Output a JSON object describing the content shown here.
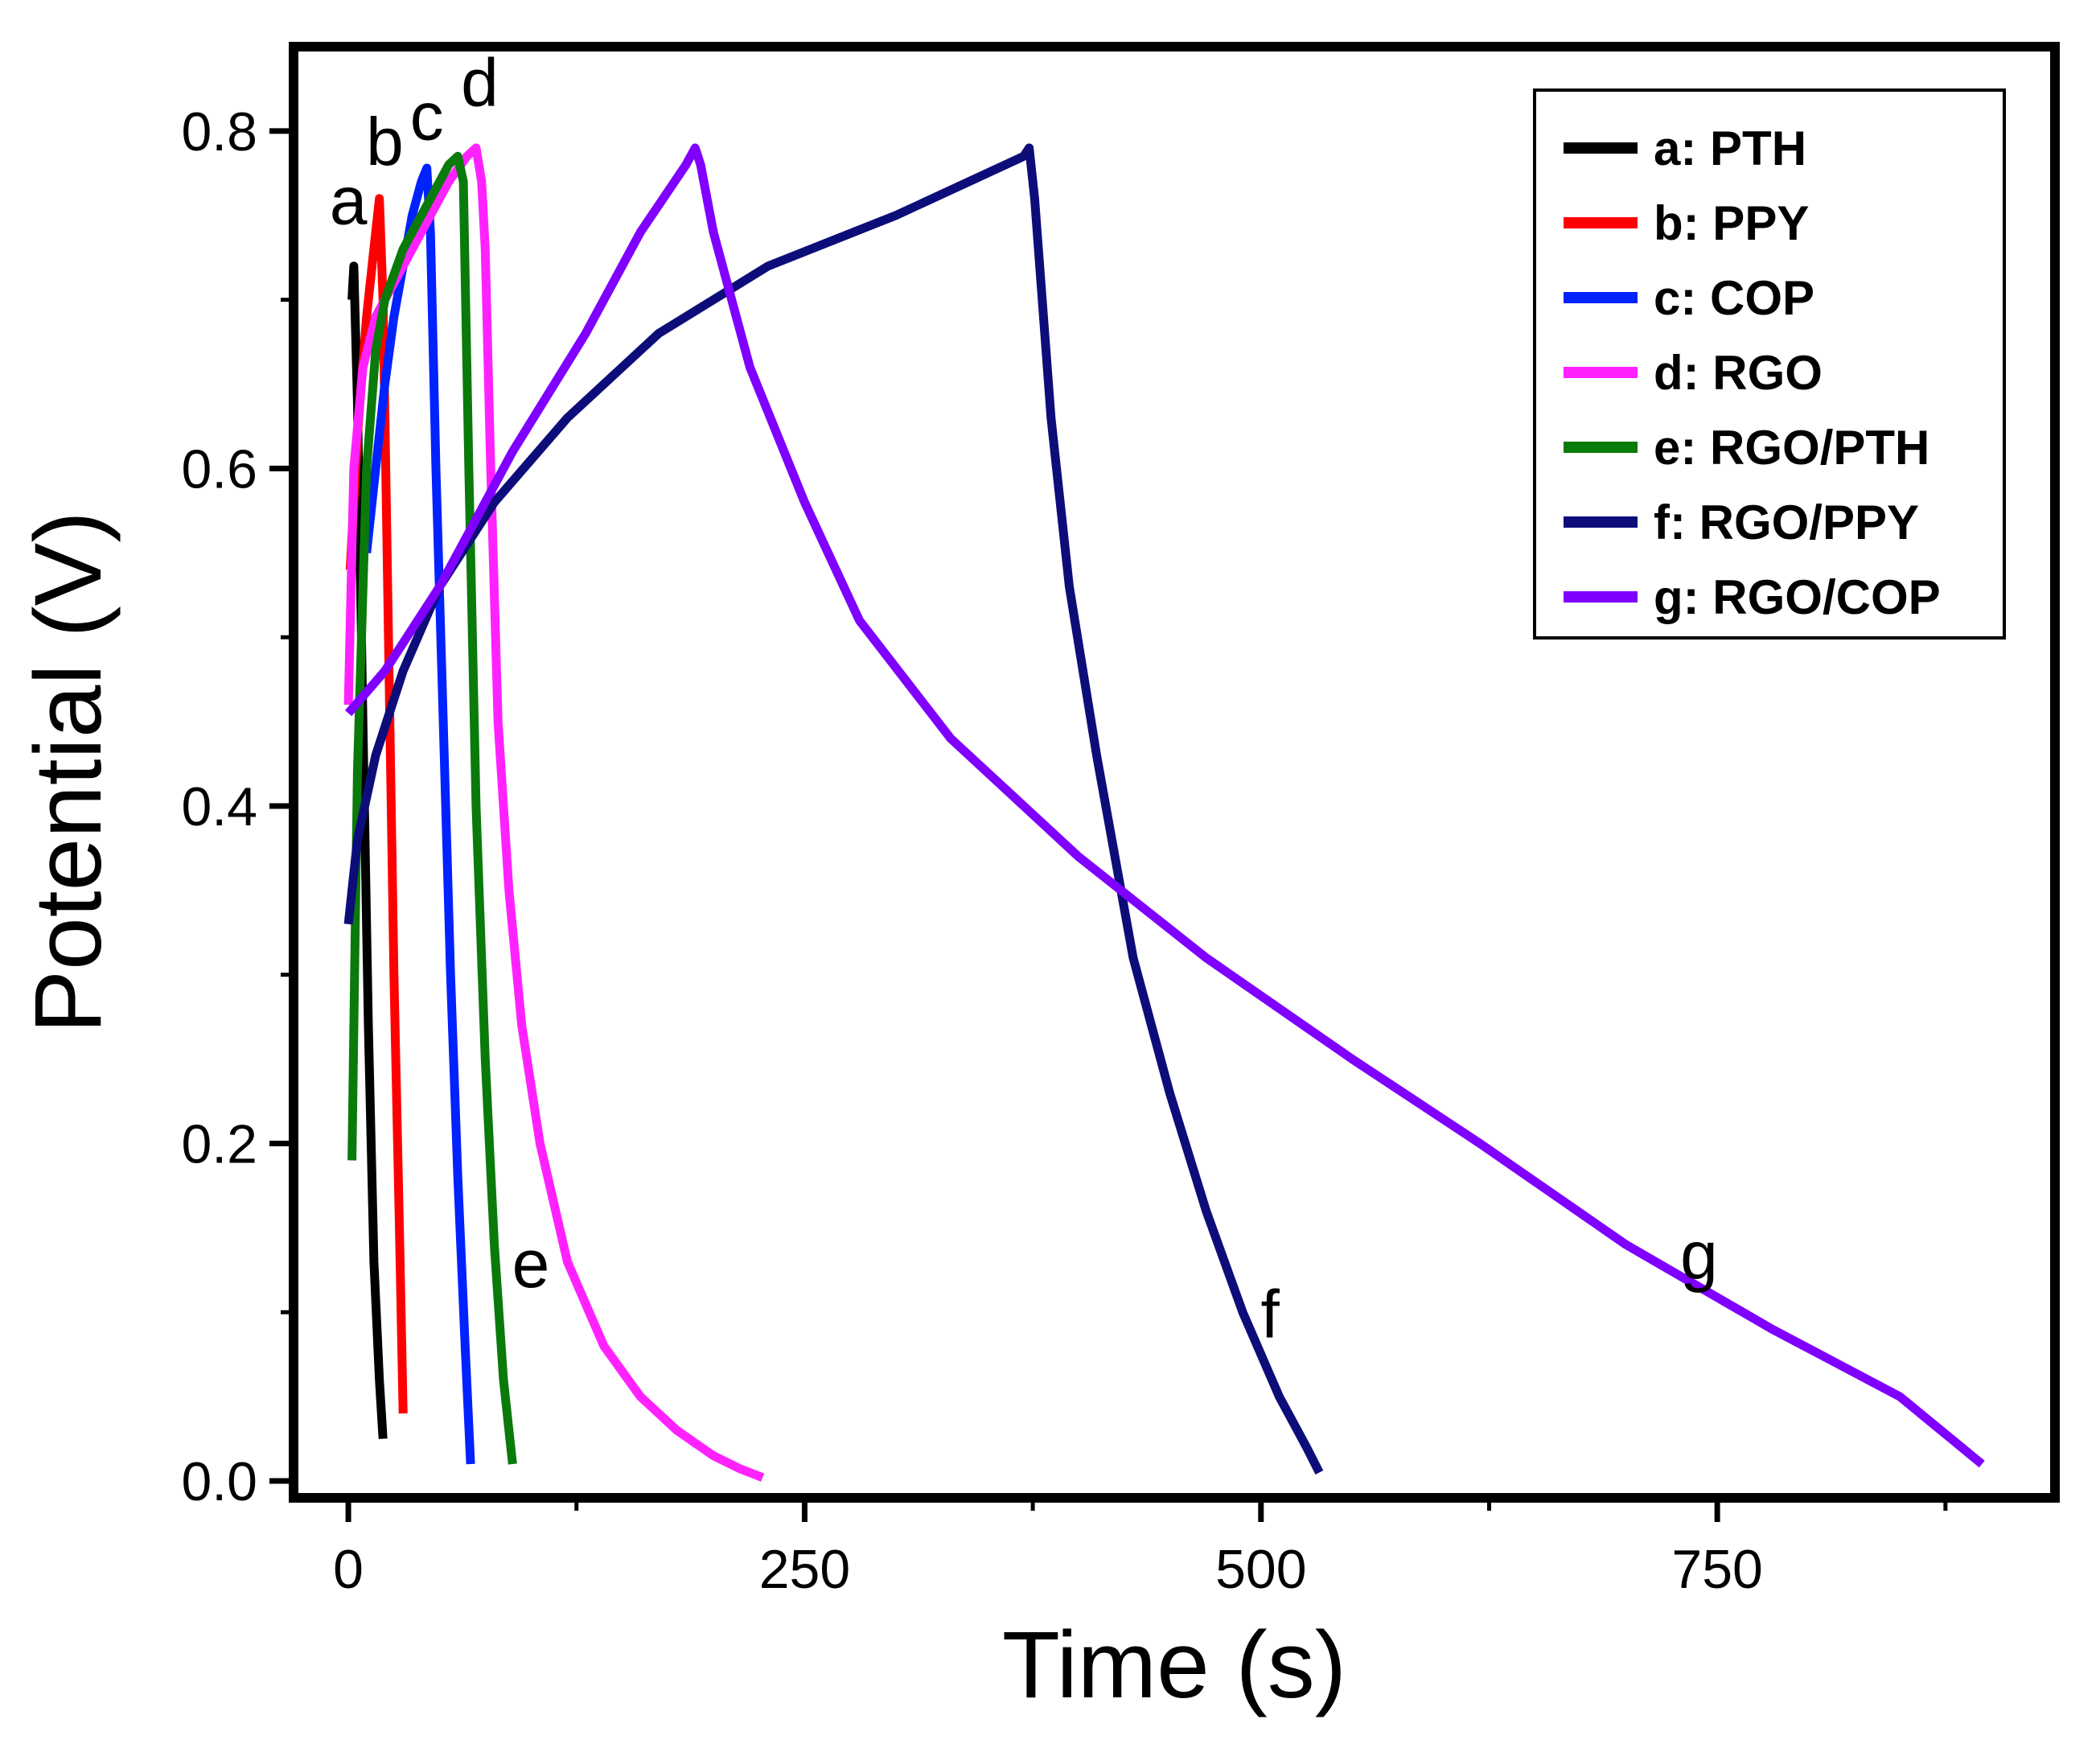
{
  "chart_data": {
    "type": "line",
    "title": "",
    "xlabel": "Time (s)",
    "ylabel": "Potential  (V)",
    "xlim": [
      -30,
      935
    ],
    "ylim": [
      -0.01,
      0.85
    ],
    "xticks": [
      0,
      250,
      500,
      750
    ],
    "yticks": [
      0.0,
      0.2,
      0.4,
      0.6,
      0.8
    ],
    "xtick_labels": [
      "0",
      "250",
      "500",
      "750"
    ],
    "ytick_labels": [
      "0.0",
      "0.2",
      "0.4",
      "0.6",
      "0.8"
    ],
    "grid": false,
    "legend_position": "top-right",
    "series": [
      {
        "id": "a",
        "name": "a: PTH",
        "color": "#000000",
        "points": [
          [
            2,
            0.7
          ],
          [
            3,
            0.72
          ],
          [
            5,
            0.64
          ],
          [
            8,
            0.45
          ],
          [
            11,
            0.27
          ],
          [
            14,
            0.13
          ],
          [
            17,
            0.06
          ],
          [
            19,
            0.025
          ]
        ],
        "curve_label": "a",
        "label_at": [
          0,
          0.745
        ]
      },
      {
        "id": "b",
        "name": "b: PPY",
        "color": "#ff0000",
        "points": [
          [
            1,
            0.54
          ],
          [
            5,
            0.62
          ],
          [
            10,
            0.69
          ],
          [
            15,
            0.74
          ],
          [
            17,
            0.76
          ],
          [
            19,
            0.7
          ],
          [
            22,
            0.5
          ],
          [
            25,
            0.3
          ],
          [
            28,
            0.15
          ],
          [
            30,
            0.04
          ]
        ],
        "curve_label": "b",
        "label_at": [
          20,
          0.78
        ]
      },
      {
        "id": "c",
        "name": "c: COP",
        "color": "#0022ff",
        "points": [
          [
            10,
            0.55
          ],
          [
            15,
            0.6
          ],
          [
            20,
            0.65
          ],
          [
            25,
            0.69
          ],
          [
            30,
            0.72
          ],
          [
            35,
            0.75
          ],
          [
            40,
            0.77
          ],
          [
            43,
            0.778
          ],
          [
            45,
            0.74
          ],
          [
            48,
            0.6
          ],
          [
            52,
            0.45
          ],
          [
            56,
            0.3
          ],
          [
            60,
            0.18
          ],
          [
            64,
            0.08
          ],
          [
            67,
            0.01
          ]
        ],
        "curve_label": "c",
        "label_at": [
          43,
          0.795
        ]
      },
      {
        "id": "d",
        "name": "d: RGO",
        "color": "#ff22ff",
        "points": [
          [
            0,
            0.46
          ],
          [
            3,
            0.6
          ],
          [
            8,
            0.66
          ],
          [
            15,
            0.69
          ],
          [
            25,
            0.71
          ],
          [
            35,
            0.73
          ],
          [
            45,
            0.75
          ],
          [
            55,
            0.77
          ],
          [
            65,
            0.785
          ],
          [
            70,
            0.79
          ],
          [
            73,
            0.77
          ],
          [
            75,
            0.73
          ],
          [
            78,
            0.6
          ],
          [
            82,
            0.45
          ],
          [
            88,
            0.35
          ],
          [
            95,
            0.27
          ],
          [
            105,
            0.2
          ],
          [
            120,
            0.13
          ],
          [
            140,
            0.08
          ],
          [
            160,
            0.05
          ],
          [
            180,
            0.03
          ],
          [
            200,
            0.015
          ],
          [
            215,
            0.007
          ],
          [
            227,
            0.002
          ]
        ],
        "curve_label": "d",
        "label_at": [
          72,
          0.815
        ]
      },
      {
        "id": "e",
        "name": "e: RGO/PTH",
        "color": "#0a7a0a",
        "points": [
          [
            2,
            0.19
          ],
          [
            5,
            0.42
          ],
          [
            10,
            0.6
          ],
          [
            15,
            0.67
          ],
          [
            20,
            0.7
          ],
          [
            30,
            0.73
          ],
          [
            40,
            0.75
          ],
          [
            50,
            0.77
          ],
          [
            55,
            0.78
          ],
          [
            60,
            0.785
          ],
          [
            63,
            0.77
          ],
          [
            66,
            0.6
          ],
          [
            70,
            0.4
          ],
          [
            75,
            0.25
          ],
          [
            80,
            0.14
          ],
          [
            85,
            0.06
          ],
          [
            90,
            0.01
          ]
        ],
        "curve_label": "e",
        "label_at": [
          100,
          0.115
        ]
      },
      {
        "id": "f",
        "name": "f: RGO/PPY",
        "color": "#0d0d7a",
        "points": [
          [
            0,
            0.33
          ],
          [
            5,
            0.38
          ],
          [
            15,
            0.43
          ],
          [
            30,
            0.48
          ],
          [
            50,
            0.53
          ],
          [
            80,
            0.58
          ],
          [
            120,
            0.63
          ],
          [
            170,
            0.68
          ],
          [
            230,
            0.72
          ],
          [
            300,
            0.75
          ],
          [
            370,
            0.785
          ],
          [
            373,
            0.79
          ],
          [
            376,
            0.76
          ],
          [
            385,
            0.63
          ],
          [
            395,
            0.53
          ],
          [
            410,
            0.43
          ],
          [
            430,
            0.31
          ],
          [
            450,
            0.23
          ],
          [
            470,
            0.16
          ],
          [
            490,
            0.1
          ],
          [
            510,
            0.05
          ],
          [
            525,
            0.02
          ],
          [
            532,
            0.005
          ]
        ],
        "curve_label": "f",
        "label_at": [
          505,
          0.085
        ]
      },
      {
        "id": "g",
        "name": "g: RGO/COP",
        "color": "#8000ff",
        "points": [
          [
            0,
            0.455
          ],
          [
            20,
            0.48
          ],
          [
            50,
            0.53
          ],
          [
            90,
            0.61
          ],
          [
            130,
            0.68
          ],
          [
            160,
            0.74
          ],
          [
            185,
            0.78
          ],
          [
            190,
            0.79
          ],
          [
            193,
            0.78
          ],
          [
            200,
            0.74
          ],
          [
            220,
            0.66
          ],
          [
            250,
            0.58
          ],
          [
            280,
            0.51
          ],
          [
            330,
            0.44
          ],
          [
            400,
            0.37
          ],
          [
            470,
            0.31
          ],
          [
            550,
            0.25
          ],
          [
            620,
            0.2
          ],
          [
            700,
            0.14
          ],
          [
            780,
            0.09
          ],
          [
            850,
            0.05
          ],
          [
            895,
            0.01
          ]
        ],
        "curve_label": "g",
        "label_at": [
          740,
          0.12
        ]
      }
    ]
  }
}
